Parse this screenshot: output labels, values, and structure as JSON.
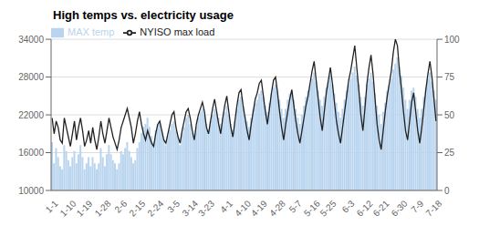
{
  "chart_data": {
    "type": "bar",
    "title": "High temps vs. electricity usage",
    "categories": [
      "1-1",
      null,
      null,
      null,
      null,
      null,
      null,
      null,
      null,
      "1-10",
      null,
      null,
      null,
      null,
      null,
      null,
      null,
      "1-19",
      null,
      null,
      null,
      null,
      null,
      null,
      null,
      null,
      "1-28",
      null,
      null,
      null,
      null,
      null,
      null,
      null,
      "2-6",
      null,
      null,
      null,
      null,
      null,
      null,
      null,
      null,
      "2-15",
      null,
      null,
      null,
      null,
      null,
      null,
      null,
      null,
      "2-24",
      null,
      null,
      null,
      null,
      null,
      null,
      null,
      "3-5",
      null,
      null,
      null,
      null,
      null,
      null,
      null,
      null,
      "3-14",
      null,
      null,
      null,
      null,
      null,
      null,
      null,
      "3-23",
      null,
      null,
      null,
      null,
      null,
      null,
      null,
      null,
      "4-1",
      null,
      null,
      null,
      null,
      null,
      null,
      null,
      null,
      "4-10",
      null,
      null,
      null,
      null,
      null,
      null,
      null,
      "4-19",
      null,
      null,
      null,
      null,
      null,
      null,
      null,
      null,
      "4-28",
      null,
      null,
      null,
      null,
      null,
      null,
      null,
      "5-7",
      null,
      null,
      null,
      null,
      null,
      null,
      null,
      null,
      "5-16",
      null,
      null,
      null,
      null,
      null,
      null,
      null,
      "5-25",
      null,
      null,
      null,
      null,
      null,
      null,
      null,
      null,
      "6-3",
      null,
      null,
      null,
      null,
      null,
      null,
      null,
      null,
      "6-12",
      null,
      null,
      null,
      null,
      null,
      null,
      null,
      "6-21",
      null,
      null,
      null,
      null,
      null,
      null,
      null,
      null,
      "6-30",
      null,
      null,
      null,
      null,
      null,
      null,
      null,
      "7-9",
      null,
      null,
      null,
      null,
      null,
      null,
      null,
      null,
      "7-18"
    ],
    "series": [
      {
        "name": "MAX temp",
        "type": "bar",
        "color": "#b8d4ee",
        "axis": "y2",
        "values": [
          32,
          18,
          28,
          22,
          16,
          14,
          30,
          26,
          20,
          16,
          22,
          26,
          18,
          24,
          30,
          22,
          14,
          18,
          22,
          16,
          22,
          18,
          14,
          18,
          28,
          22,
          16,
          24,
          30,
          24,
          20,
          18,
          14,
          18,
          26,
          24,
          28,
          32,
          26,
          22,
          18,
          20,
          28,
          32,
          38,
          42,
          44,
          48,
          42,
          36,
          32,
          40,
          44,
          46,
          40,
          34,
          30,
          36,
          40,
          44,
          46,
          40,
          36,
          30,
          38,
          42,
          48,
          50,
          44,
          38,
          34,
          42,
          48,
          52,
          54,
          50,
          44,
          40,
          46,
          50,
          54,
          52,
          48,
          44,
          48,
          52,
          56,
          50,
          44,
          40,
          46,
          54,
          60,
          62,
          56,
          50,
          46,
          42,
          48,
          54,
          58,
          60,
          64,
          66,
          62,
          56,
          52,
          58,
          64,
          68,
          70,
          66,
          60,
          54,
          48,
          54,
          60,
          64,
          66,
          60,
          54,
          48,
          44,
          50,
          56,
          62,
          66,
          70,
          74,
          78,
          72,
          66,
          60,
          56,
          62,
          68,
          72,
          76,
          70,
          64,
          58,
          52,
          48,
          54,
          60,
          66,
          70,
          74,
          78,
          82,
          76,
          70,
          62,
          56,
          62,
          70,
          74,
          78,
          72,
          64,
          56,
          50,
          44,
          52,
          58,
          66,
          70,
          74,
          80,
          84,
          88,
          82,
          76,
          68,
          60,
          54,
          60,
          66,
          68,
          62,
          54,
          48,
          54,
          62,
          68,
          74,
          78,
          72,
          66,
          60
        ]
      },
      {
        "name": "NYISO max load",
        "type": "line",
        "color": "#222222",
        "values": [
          21500,
          19000,
          21000,
          20000,
          18000,
          17500,
          21500,
          20000,
          18500,
          17000,
          19000,
          21000,
          18000,
          20000,
          21500,
          19500,
          17000,
          18000,
          19500,
          17500,
          20000,
          18000,
          16500,
          18500,
          21000,
          19000,
          17500,
          19500,
          21500,
          20000,
          18500,
          17500,
          16500,
          18000,
          20000,
          21000,
          22000,
          23000,
          21500,
          20000,
          17500,
          19000,
          21000,
          22500,
          20500,
          19000,
          18000,
          19500,
          18500,
          17500,
          17000,
          19000,
          20500,
          21000,
          19500,
          18000,
          17500,
          19000,
          20500,
          22000,
          22500,
          20000,
          18500,
          17500,
          19500,
          21000,
          22500,
          23000,
          21500,
          19500,
          18000,
          20500,
          22000,
          23000,
          24000,
          22500,
          20000,
          19000,
          21000,
          23000,
          24500,
          22500,
          20500,
          19000,
          21500,
          23500,
          25000,
          22500,
          20000,
          18500,
          21000,
          23500,
          25500,
          26000,
          23500,
          21500,
          19500,
          18000,
          20500,
          22500,
          24500,
          25500,
          27000,
          27500,
          25000,
          22500,
          20500,
          23000,
          25500,
          27500,
          28000,
          25500,
          22500,
          20000,
          18000,
          20500,
          22500,
          24500,
          26000,
          23500,
          21000,
          19000,
          17500,
          19500,
          21500,
          23500,
          25000,
          27000,
          29000,
          30500,
          27500,
          24500,
          21500,
          19500,
          22500,
          25500,
          27500,
          29500,
          27000,
          24000,
          21000,
          19000,
          17500,
          20000,
          22500,
          25000,
          27500,
          29000,
          31000,
          33000,
          29500,
          26000,
          22000,
          19500,
          23000,
          27000,
          29500,
          31500,
          28500,
          24500,
          20500,
          18000,
          16500,
          19500,
          22500,
          25000,
          27000,
          29000,
          32000,
          34000,
          33000,
          29000,
          26000,
          22500,
          19500,
          18000,
          21000,
          24000,
          25500,
          22500,
          19500,
          17500,
          20000,
          23000,
          26000,
          28500,
          30500,
          28000,
          24500,
          21000
        ]
      }
    ],
    "ylim": [
      10000,
      34000
    ],
    "yticks": [
      10000,
      16000,
      22000,
      28000,
      34000
    ],
    "y2lim": [
      0,
      100
    ],
    "y2ticks": [
      0,
      25,
      50,
      75,
      100
    ],
    "grid": true,
    "legend": "upper left"
  }
}
